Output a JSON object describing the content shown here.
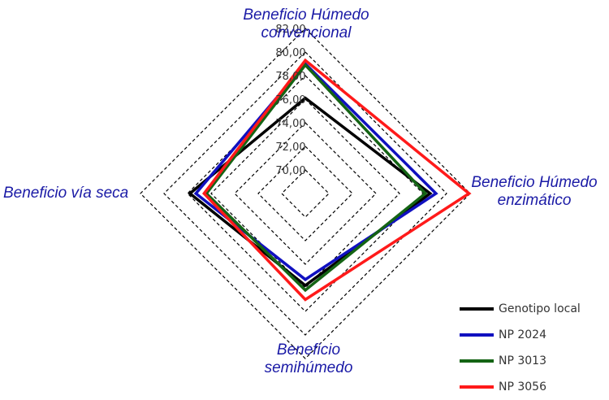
{
  "chart_data": {
    "type": "radar",
    "axes": [
      {
        "label_lines": [
          "Beneficio Húmedo",
          "convencional"
        ]
      },
      {
        "label_lines": [
          "Beneficio Húmedo",
          "enzimático"
        ]
      },
      {
        "label_lines": [
          "Beneficio",
          "semihúmedo"
        ]
      },
      {
        "label_lines": [
          "Beneficio vía  seca"
        ]
      }
    ],
    "range": [
      68,
      82
    ],
    "ticks": [
      "70,00",
      "72,00",
      "74,00",
      "76,00",
      "78,00",
      "80,00",
      "82,00"
    ],
    "tick_values": [
      70,
      72,
      74,
      76,
      78,
      80,
      82
    ],
    "grid": true,
    "grid_style": "dashed",
    "legend_position": "bottom-right",
    "series": [
      {
        "name": "Genotipo local",
        "color": "#000000",
        "values": [
          76.1,
          78.6,
          75.8,
          77.8
        ]
      },
      {
        "name": "NP 2024",
        "color": "#1010c0",
        "values": [
          79.0,
          79.1,
          75.3,
          77.3
        ]
      },
      {
        "name": "NP 3013",
        "color": "#146414",
        "values": [
          78.9,
          78.2,
          76.2,
          76.4
        ]
      },
      {
        "name": "NP 3056",
        "color": "#ff1a1a",
        "values": [
          79.3,
          81.9,
          77.0,
          76.6
        ]
      }
    ]
  }
}
